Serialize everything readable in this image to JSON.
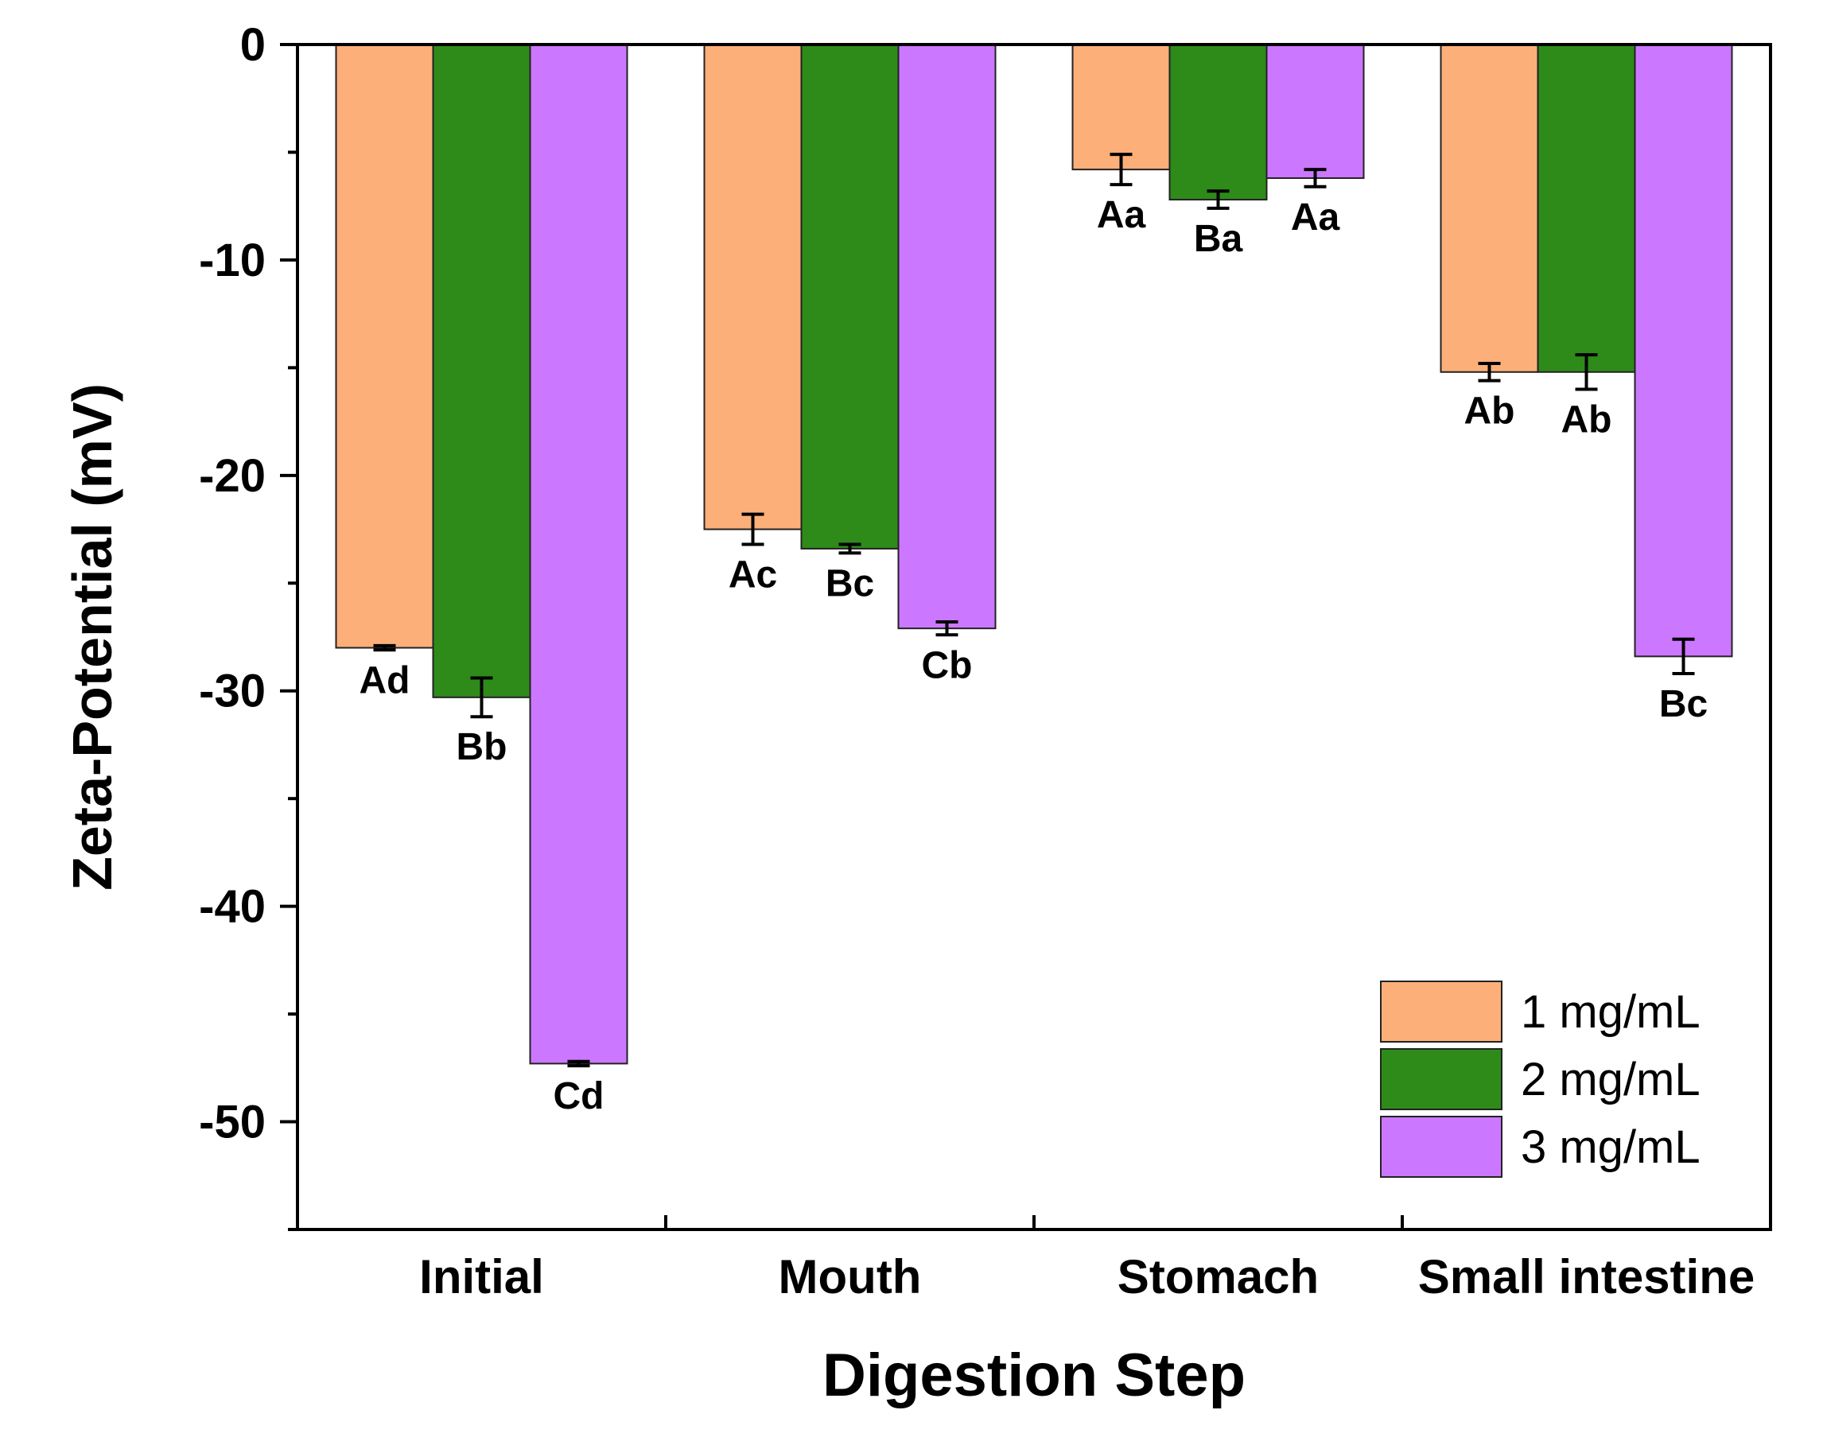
{
  "chart_data": {
    "type": "bar",
    "xlabel": "Digestion Step",
    "ylabel": "Zeta-Potential (mV)",
    "ylim": [
      -55,
      0
    ],
    "yticks": [
      0,
      -10,
      -20,
      -30,
      -40,
      -50
    ],
    "grid": false,
    "legend_position": "bottom-right",
    "categories": [
      "Initial",
      "Mouth",
      "Stomach",
      "Small intestine"
    ],
    "series": [
      {
        "name": "1 mg/mL",
        "color": "#FDAF79",
        "values": [
          -28.0,
          -22.5,
          -5.8,
          -15.2
        ],
        "errors": [
          0.1,
          0.7,
          0.7,
          0.4
        ],
        "letters": [
          "Ad",
          "Ac",
          "Aa",
          "Ab"
        ]
      },
      {
        "name": "2 mg/mL",
        "color": "#2E8B1A",
        "values": [
          -30.3,
          -23.4,
          -7.2,
          -15.2
        ],
        "errors": [
          0.9,
          0.2,
          0.4,
          0.8
        ],
        "letters": [
          "Bb",
          "Bc",
          "Ba",
          "Ab"
        ]
      },
      {
        "name": "3 mg/mL",
        "color": "#CC77FF",
        "values": [
          -47.3,
          -27.1,
          -6.2,
          -28.4
        ],
        "errors": [
          0.1,
          0.3,
          0.4,
          0.8
        ],
        "letters": [
          "Cd",
          "Cb",
          "Aa",
          "Bc"
        ]
      }
    ]
  }
}
